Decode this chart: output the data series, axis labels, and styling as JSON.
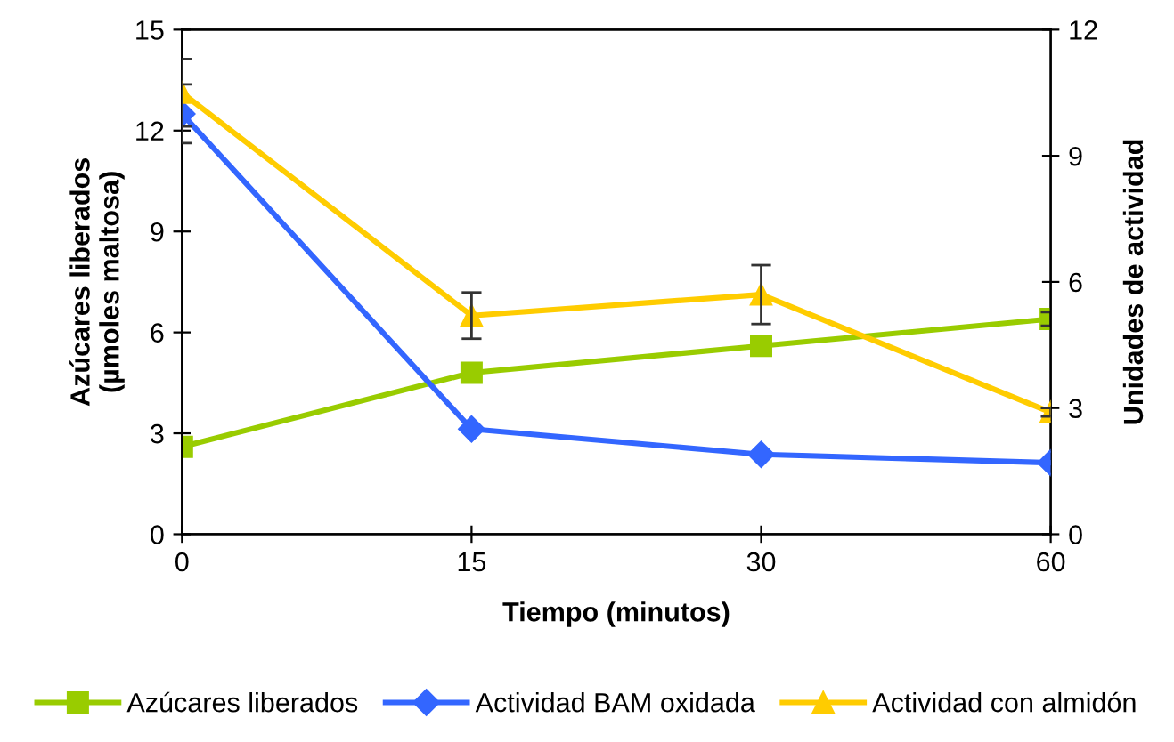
{
  "chart_data": {
    "type": "line",
    "xlabel": "Tiempo (minutos)",
    "ylabel": "Azúcares liberados\n(µmoles maltosa)",
    "y2label": "Unidades de actividad",
    "categories": [
      "0",
      "15",
      "30",
      "60"
    ],
    "ylim": [
      0,
      15
    ],
    "yticks": [
      0,
      3,
      6,
      9,
      12,
      15
    ],
    "y2lim": [
      0,
      12
    ],
    "y2ticks": [
      0,
      3,
      6,
      9,
      12
    ],
    "grid": false,
    "legend": "bottom",
    "series": [
      {
        "name": "Azúcares liberados",
        "color": "#99cc00",
        "marker": "square",
        "values": [
          2.6,
          4.8,
          5.6,
          6.4
        ],
        "errors": [
          null,
          null,
          null,
          0.2
        ]
      },
      {
        "name": "Actividad BAM oxidada",
        "color": "#3366ff",
        "marker": "diamond",
        "axis": "y2",
        "values": [
          10.0,
          2.5,
          1.9,
          1.7
        ],
        "errors": [
          0.7,
          null,
          null,
          null
        ]
      },
      {
        "name": "Actividad con almidón",
        "color": "#ffcc00",
        "marker": "triangle",
        "axis": "y2",
        "values": [
          10.5,
          5.2,
          5.7,
          2.9
        ],
        "errors": [
          0.8,
          0.55,
          0.7,
          0.1
        ]
      }
    ]
  }
}
